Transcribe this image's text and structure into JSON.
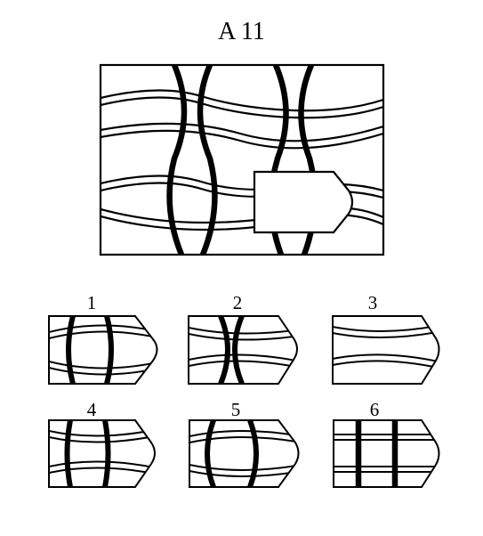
{
  "puzzle": {
    "title": "A 11",
    "options": [
      {
        "label": "1"
      },
      {
        "label": "2"
      },
      {
        "label": "3"
      },
      {
        "label": "4"
      },
      {
        "label": "5"
      },
      {
        "label": "6"
      }
    ]
  }
}
